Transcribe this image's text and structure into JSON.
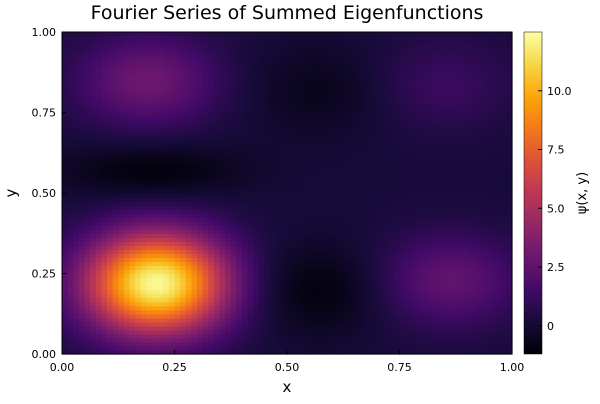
{
  "chart_data": {
    "type": "heatmap",
    "title": "Fourier Series of Summed Eigenfunctions",
    "xlabel": "x",
    "ylabel": "y",
    "xlim": [
      0,
      1
    ],
    "ylim": [
      0,
      1
    ],
    "x_ticks": [
      {
        "value": 0.0,
        "label": "0.00"
      },
      {
        "value": 0.25,
        "label": "0.25"
      },
      {
        "value": 0.5,
        "label": "0.50"
      },
      {
        "value": 0.75,
        "label": "0.75"
      },
      {
        "value": 1.0,
        "label": "1.00"
      }
    ],
    "y_ticks": [
      {
        "value": 0.0,
        "label": "0.00"
      },
      {
        "value": 0.25,
        "label": "0.25"
      },
      {
        "value": 0.5,
        "label": "0.50"
      },
      {
        "value": 0.75,
        "label": "0.75"
      },
      {
        "value": 1.0,
        "label": "1.00"
      }
    ],
    "colorbar": {
      "label": "ψ(x, y)",
      "colormap": "inferno",
      "range": [
        -1.2,
        12.5
      ],
      "ticks": [
        {
          "value": 0,
          "label": "0"
        },
        {
          "value": 2.5,
          "label": "2.5"
        },
        {
          "value": 5.0,
          "label": "5.0"
        },
        {
          "value": 7.5,
          "label": "7.5"
        },
        {
          "value": 10.0,
          "label": "10.0"
        }
      ]
    },
    "grid": false,
    "field": {
      "description_values": "psi(x,y) sampled on a regular grid from x in [0,1], y in [0,1]",
      "nx": 80,
      "ny": 80,
      "features": [
        {
          "x": 0.21,
          "y": 0.22,
          "value": 12.3,
          "kind": "maximum"
        },
        {
          "x": 0.19,
          "y": 0.85,
          "value": 3.0,
          "kind": "local maximum"
        },
        {
          "x": 0.86,
          "y": 0.23,
          "value": 2.6,
          "kind": "local maximum"
        },
        {
          "x": 0.85,
          "y": 0.84,
          "value": 1.3,
          "kind": "local maximum"
        },
        {
          "x": 0.2,
          "y": 0.57,
          "value": -1.1,
          "kind": "minimum"
        },
        {
          "x": 0.57,
          "y": 0.2,
          "value": -1.0,
          "kind": "minimum"
        },
        {
          "x": 0.57,
          "y": 0.82,
          "value": -0.6,
          "kind": "minimum"
        }
      ]
    }
  }
}
